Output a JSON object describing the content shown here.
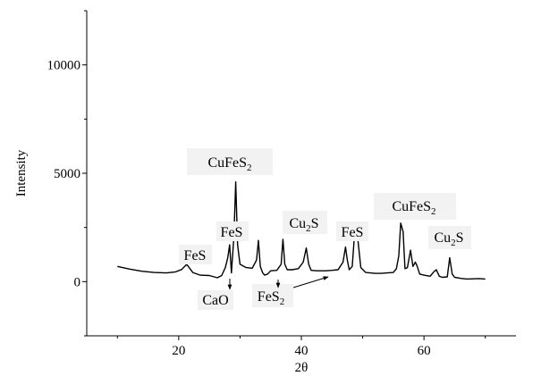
{
  "chart_data": {
    "type": "line",
    "title": "",
    "xlabel": "2θ",
    "ylabel": "Intensity",
    "xlim": [
      5,
      75
    ],
    "ylim": [
      -2500,
      12500
    ],
    "xticks": [
      20,
      40,
      60
    ],
    "yticks": [
      0,
      5000,
      10000
    ],
    "grid": false,
    "legend": "none",
    "series": [
      {
        "color": "#000000",
        "x": [
          10,
          12,
          14,
          16,
          18,
          19.5,
          20.5,
          21.3,
          22.3,
          23.5,
          25,
          26.3,
          27,
          27.6,
          28,
          28.3,
          28.6,
          29,
          29.3,
          29.6,
          30,
          31,
          32,
          32.7,
          33,
          33.3,
          33.7,
          34,
          34.5,
          35,
          36,
          36.7,
          37,
          37.3,
          37.7,
          38.5,
          39.5,
          40.3,
          40.8,
          41.2,
          41.6,
          42.5,
          44,
          45,
          46,
          46.8,
          47.2,
          47.5,
          47.8,
          48.3,
          48.6,
          49,
          49.3,
          49.7,
          50.5,
          52,
          53,
          54,
          55,
          55.5,
          55.9,
          56.2,
          56.6,
          56.9,
          57.3,
          57.8,
          58.2,
          58.6,
          58.9,
          59.3,
          60,
          61,
          61.6,
          62,
          62.5,
          63,
          63.8,
          64.2,
          64.6,
          65,
          66,
          67,
          68,
          69,
          70
        ],
        "y": [
          700,
          580,
          480,
          420,
          400,
          450,
          560,
          800,
          420,
          300,
          280,
          180,
          280,
          650,
          1100,
          1700,
          400,
          2100,
          4600,
          1700,
          800,
          650,
          620,
          1000,
          1900,
          700,
          400,
          300,
          350,
          500,
          520,
          800,
          1950,
          800,
          550,
          550,
          600,
          900,
          1550,
          800,
          520,
          500,
          500,
          520,
          550,
          900,
          1600,
          1000,
          550,
          700,
          1900,
          2600,
          1700,
          650,
          420,
          380,
          380,
          400,
          420,
          600,
          1200,
          2700,
          2300,
          600,
          650,
          1450,
          700,
          900,
          700,
          350,
          300,
          250,
          450,
          550,
          250,
          200,
          220,
          1100,
          350,
          200,
          150,
          120,
          130,
          140,
          120
        ]
      }
    ],
    "annotations": [
      {
        "base": "FeS",
        "sub": ""
      },
      {
        "base": "FeS",
        "sub": ""
      },
      {
        "base": "CuFeS",
        "sub": "2"
      },
      {
        "base": "Cu",
        "sub": "2",
        "post": "S"
      },
      {
        "base": "FeS",
        "sub": ""
      },
      {
        "base": "CuFeS",
        "sub": "2"
      },
      {
        "base": "Cu",
        "sub": "2",
        "post": "S"
      },
      {
        "base": "CaO",
        "sub": ""
      },
      {
        "base": "FeS",
        "sub": "2"
      }
    ]
  }
}
